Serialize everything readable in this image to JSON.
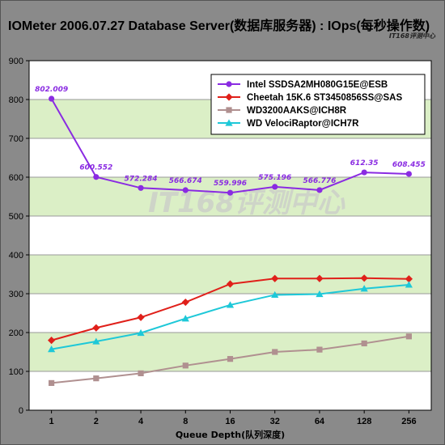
{
  "title": "IOMeter 2006.07.27 Database Server(数据库服务器) : IOps(每秒操作数)",
  "brand": "IT168评测中心",
  "watermark": "IT168评测中心",
  "colors": {
    "plot_band_green": "#dbefc6",
    "plot_band_white": "#ffffff",
    "background": "#8a8a8a"
  },
  "chart_data": {
    "type": "line",
    "title": "IOMeter 2006.07.27 Database Server(数据库服务器) : IOps(每秒操作数)",
    "xlabel": "Queue Depth(队列深度)",
    "ylabel": "",
    "categories": [
      "1",
      "2",
      "4",
      "8",
      "16",
      "32",
      "64",
      "128",
      "256"
    ],
    "ylim": [
      0,
      900
    ],
    "yticks": [
      "0",
      "100",
      "200",
      "300",
      "400",
      "500",
      "600",
      "700",
      "800",
      "900"
    ],
    "grid": true,
    "legend_position": "top-right",
    "series": [
      {
        "name": "Intel SSDSA2MH080G15E@ESB",
        "color": "#8a2be2",
        "marker": "circle",
        "values": [
          802.009,
          600.552,
          572.284,
          566.674,
          559.996,
          575.196,
          566.776,
          612.35,
          608.455
        ],
        "labels": [
          "802.009",
          "600.552",
          "572.284",
          "566.674",
          "559.996",
          "575.196",
          "566.776",
          "612.35",
          "608.455"
        ]
      },
      {
        "name": "Cheetah 15K.6 ST3450856SS@SAS",
        "color": "#e0201a",
        "marker": "diamond",
        "values": [
          180,
          212,
          239,
          278,
          325,
          339,
          339,
          340,
          338
        ]
      },
      {
        "name": "WD3200AAKS@ICH8R",
        "color": "#b09090",
        "marker": "square",
        "values": [
          70,
          82,
          95,
          115,
          132,
          150,
          156,
          172,
          190
        ]
      },
      {
        "name": "WD VelociRaptor@ICH7R",
        "color": "#1ec8d8",
        "marker": "triangle",
        "values": [
          157,
          177,
          199,
          236,
          271,
          297,
          299,
          313,
          323
        ]
      }
    ]
  }
}
